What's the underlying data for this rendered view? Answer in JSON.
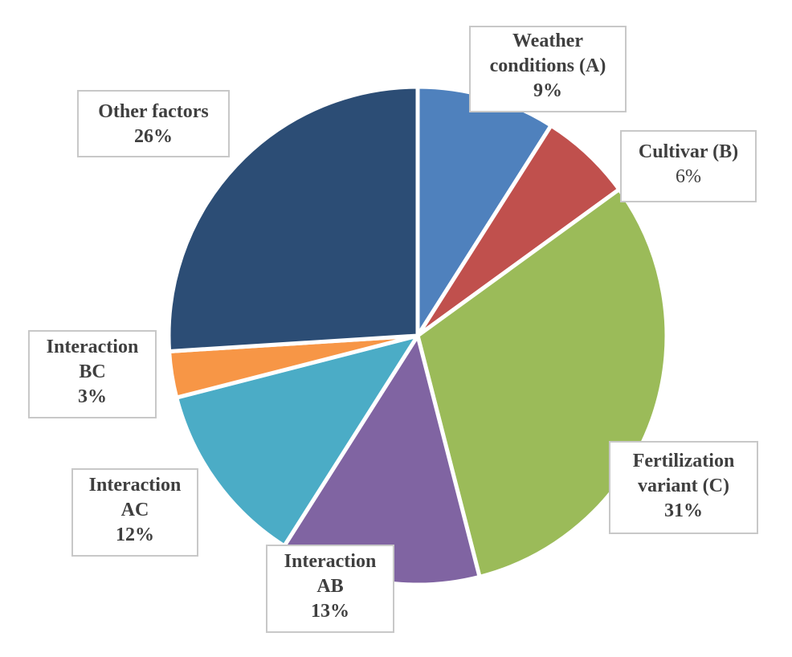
{
  "chart_data": {
    "type": "pie",
    "start_angle_deg": 0,
    "direction": "clockwise",
    "slices": [
      {
        "label_lines": [
          "Weather",
          "conditions (A)"
        ],
        "value": 9,
        "display": "9%",
        "color": "#4f81bd"
      },
      {
        "label_lines": [
          "Cultivar (B)"
        ],
        "value": 6,
        "display": "6%",
        "color": "#c0504d"
      },
      {
        "label_lines": [
          "Fertilization",
          "variant (C)"
        ],
        "value": 31,
        "display": "31%",
        "color": "#9bbb59"
      },
      {
        "label_lines": [
          "Interaction",
          "AB"
        ],
        "value": 13,
        "display": "13%",
        "color": "#8064a2"
      },
      {
        "label_lines": [
          "Interaction",
          "AC"
        ],
        "value": 12,
        "display": "12%",
        "color": "#4bacc6"
      },
      {
        "label_lines": [
          "Interaction",
          "BC"
        ],
        "value": 3,
        "display": "3%",
        "color": "#f79646"
      },
      {
        "label_lines": [
          "Other factors"
        ],
        "value": 26,
        "display": "26%",
        "color": "#2c4d75"
      }
    ]
  }
}
